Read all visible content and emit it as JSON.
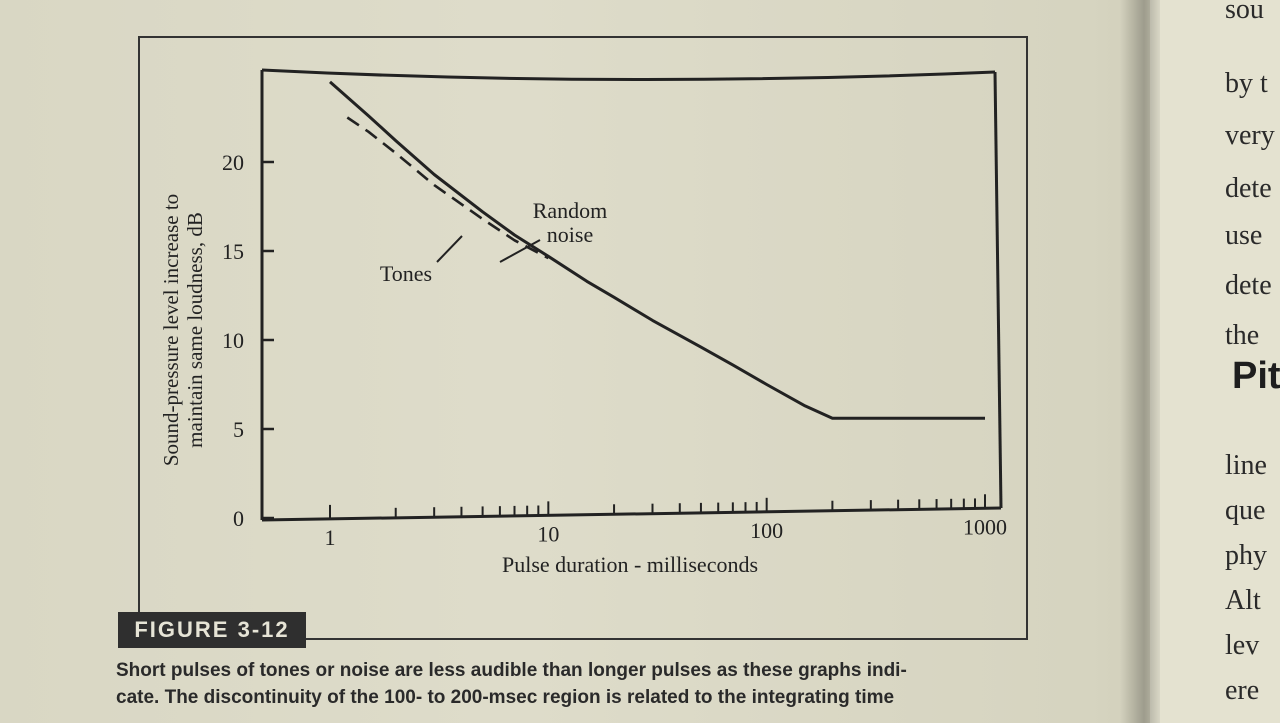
{
  "figure": {
    "label": "FIGURE 3-12",
    "caption_lines": [
      "Short pulses of tones or noise are less audible than longer pulses as these graphs indi-",
      "cate. The discontinuity of the 100- to 200-msec region is related to the integrating time"
    ]
  },
  "right_page": {
    "lines": [
      "sou",
      "by t",
      "very",
      "dete",
      "use",
      "dete",
      "the",
      "Pit",
      "line",
      "que",
      "phy",
      "Alt",
      "lev",
      "ere"
    ],
    "heading": "Pit"
  },
  "chart_data": {
    "type": "line",
    "xlabel": "Pulse duration - milliseconds",
    "ylabel_lines": [
      "Sound-pressure level increase to",
      "maintain same loudness, dB"
    ],
    "x_scale": "log",
    "xlim": [
      0.6,
      1400
    ],
    "ylim": [
      0,
      26
    ],
    "x_ticks": [
      1,
      10,
      100,
      1000
    ],
    "x_tick_labels": [
      "1",
      "10",
      "100",
      "1000"
    ],
    "y_ticks": [
      0,
      5,
      10,
      15,
      20
    ],
    "y_tick_labels": [
      "0",
      "5",
      "10",
      "15",
      "20"
    ],
    "grid": false,
    "annotations": [
      {
        "text_lines": [
          "Random",
          "noise"
        ],
        "points_to": "Random noise"
      },
      {
        "text_lines": [
          "Tones"
        ],
        "points_to": "Tones"
      }
    ],
    "series": [
      {
        "name": "Random noise",
        "style": "solid",
        "x": [
          1,
          1.5,
          2,
          3,
          5,
          7,
          10,
          15,
          20,
          30,
          50,
          70,
          100,
          150,
          200,
          300,
          500,
          700,
          1000
        ],
        "y": [
          24.5,
          22.6,
          21.2,
          19.3,
          17.2,
          15.9,
          14.7,
          13.3,
          12.4,
          11.1,
          9.6,
          8.6,
          7.5,
          6.3,
          5.6,
          5.6,
          5.6,
          5.6,
          5.6
        ]
      },
      {
        "name": "Tones",
        "style": "dashed",
        "x": [
          1.2,
          1.5,
          2,
          3,
          5,
          7,
          10
        ],
        "y": [
          22.5,
          21.7,
          20.5,
          18.7,
          16.8,
          15.6,
          14.6
        ]
      }
    ]
  }
}
